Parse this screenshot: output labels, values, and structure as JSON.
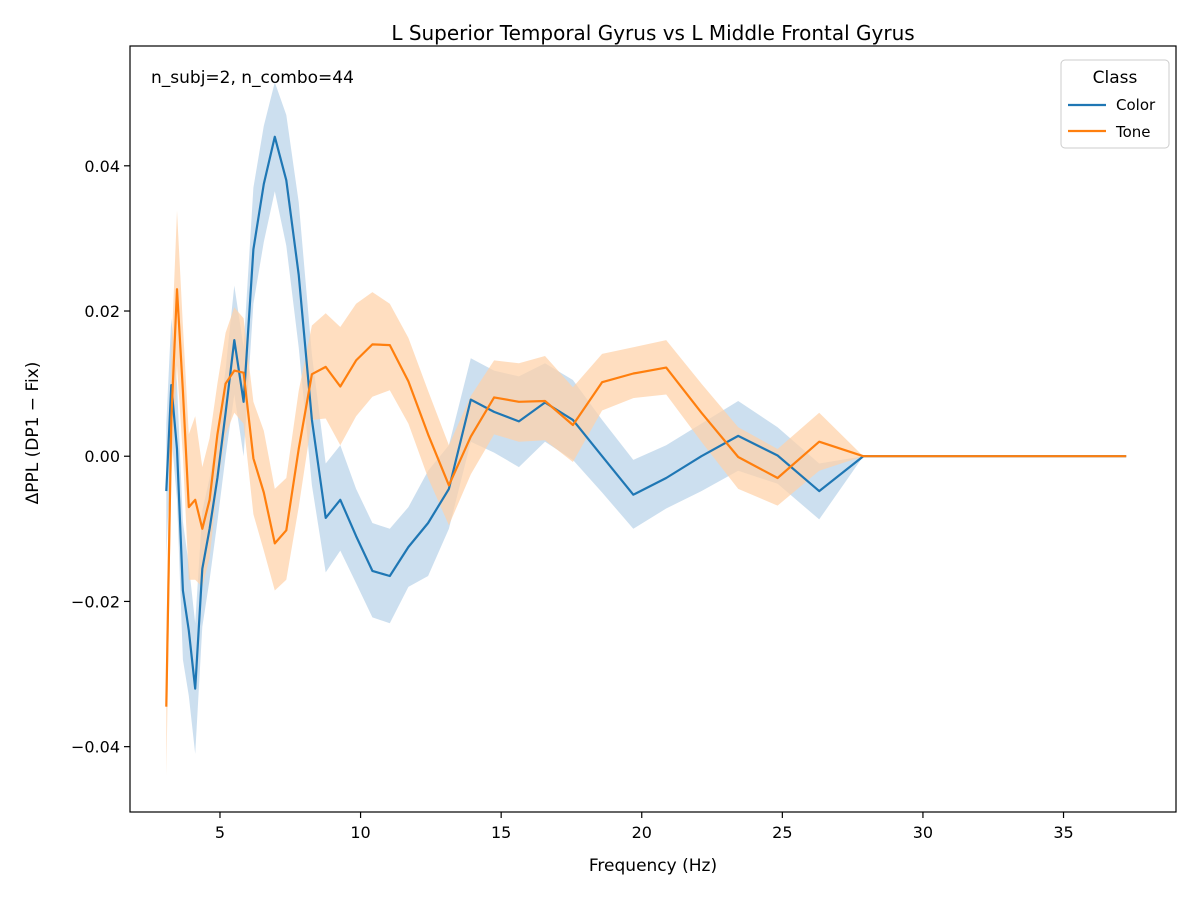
{
  "chart_data": {
    "type": "line",
    "title": "L Superior Temporal Gyrus vs L Middle Frontal Gyrus",
    "xlabel": "Frequency (Hz)",
    "ylabel": "ΔPPL (DP1 − Fix)",
    "annotation": "n_subj=2, n_combo=44",
    "xlim": [
      1.8,
      39.0
    ],
    "ylim": [
      -0.049,
      0.0565
    ],
    "xticks": [
      5,
      10,
      15,
      20,
      25,
      30,
      35
    ],
    "xtick_labels": [
      "5",
      "10",
      "15",
      "20",
      "25",
      "30",
      "35"
    ],
    "yticks": [
      -0.04,
      -0.02,
      0.0,
      0.02,
      0.04
    ],
    "ytick_labels": [
      "−0.04",
      "−0.02",
      "0.00",
      "0.02",
      "0.04"
    ],
    "grid": false,
    "legend": {
      "title": "Class",
      "position": "top-right"
    },
    "x": [
      3.09,
      3.27,
      3.47,
      3.68,
      3.89,
      4.12,
      4.37,
      4.63,
      4.91,
      5.2,
      5.51,
      5.84,
      6.19,
      6.56,
      6.95,
      7.36,
      7.8,
      8.27,
      8.76,
      9.28,
      9.84,
      10.42,
      11.04,
      11.7,
      12.4,
      13.14,
      13.92,
      14.75,
      15.63,
      16.56,
      17.55,
      18.59,
      19.7,
      20.87,
      22.12,
      23.43,
      24.83,
      26.31,
      27.88,
      29.54,
      31.3,
      33.16,
      35.14,
      37.23
    ],
    "series": [
      {
        "name": "Color",
        "color": "#1f77b4",
        "band_color": "#b9d3e9",
        "values": [
          -0.0048,
          0.0098,
          0.001,
          -0.0185,
          -0.024,
          -0.032,
          -0.0155,
          -0.01,
          -0.003,
          0.006,
          0.016,
          0.0075,
          0.0285,
          0.0375,
          0.044,
          0.038,
          0.025,
          0.005,
          -0.0085,
          -0.006,
          -0.011,
          -0.0158,
          -0.0165,
          -0.0125,
          -0.0092,
          -0.0045,
          0.0078,
          0.0061,
          0.0048,
          0.0074,
          0.005,
          0.0,
          -0.0053,
          -0.003,
          0.0,
          0.0028,
          0.0001,
          -0.0048,
          0,
          0,
          0,
          0,
          0,
          0
        ],
        "lower": [
          -0.014,
          0.003,
          -0.006,
          -0.028,
          -0.033,
          -0.041,
          -0.0235,
          -0.017,
          -0.009,
          0.0,
          0.0085,
          0.0,
          0.021,
          0.0295,
          0.0365,
          0.029,
          0.015,
          -0.004,
          -0.016,
          -0.013,
          -0.0175,
          -0.0222,
          -0.023,
          -0.018,
          -0.0165,
          -0.01,
          0.002,
          0.0005,
          -0.0015,
          0.002,
          -0.0005,
          -0.005,
          -0.01,
          -0.0072,
          -0.0048,
          -0.002,
          -0.0038,
          -0.0087,
          0,
          0,
          0,
          0,
          0,
          0
        ],
        "upper": [
          0.0045,
          0.019,
          0.01,
          -0.009,
          -0.015,
          -0.023,
          -0.0075,
          -0.003,
          0.003,
          0.012,
          0.0235,
          0.015,
          0.037,
          0.0455,
          0.0515,
          0.047,
          0.035,
          0.014,
          -0.001,
          0.0015,
          -0.0045,
          -0.0092,
          -0.01,
          -0.007,
          -0.002,
          0.0015,
          0.0135,
          0.0118,
          0.011,
          0.0128,
          0.0105,
          0.005,
          -0.0005,
          0.0015,
          0.0045,
          0.0076,
          0.004,
          -0.001,
          0,
          0,
          0,
          0,
          0,
          0
        ]
      },
      {
        "name": "Tone",
        "color": "#ff7f0e",
        "band_color": "#ffd1a8",
        "values": [
          -0.0345,
          0.005,
          0.023,
          0.009,
          -0.007,
          -0.006,
          -0.01,
          -0.006,
          0.003,
          0.01,
          0.0118,
          0.0115,
          -0.0003,
          -0.005,
          -0.012,
          -0.0102,
          0.001,
          0.0113,
          0.0123,
          0.0096,
          0.0132,
          0.0154,
          0.0153,
          0.0103,
          0.003,
          -0.004,
          0.0027,
          0.0081,
          0.0075,
          0.0076,
          0.0043,
          0.0102,
          0.0114,
          0.0122,
          0.006,
          -0.0001,
          -0.003,
          0.002,
          0,
          0,
          0,
          0,
          0,
          0
        ],
        "lower": [
          -0.044,
          -0.003,
          0.0125,
          0.0,
          -0.017,
          -0.017,
          -0.018,
          -0.014,
          -0.004,
          0.003,
          0.006,
          0.0045,
          -0.008,
          -0.013,
          -0.0185,
          -0.017,
          -0.007,
          0.005,
          0.0052,
          0.0015,
          0.0055,
          0.0082,
          0.0091,
          0.0045,
          -0.003,
          -0.0095,
          -0.0025,
          0.003,
          0.002,
          0.0022,
          -0.0008,
          0.0063,
          0.008,
          0.0085,
          0.002,
          -0.0045,
          -0.0068,
          -0.002,
          0,
          0,
          0,
          0,
          0,
          0
        ],
        "upper": [
          -0.025,
          0.014,
          0.0338,
          0.018,
          0.003,
          0.0055,
          -0.0015,
          0.0025,
          0.01,
          0.017,
          0.0205,
          0.019,
          0.0075,
          0.0035,
          -0.0045,
          -0.003,
          0.009,
          0.018,
          0.0197,
          0.0178,
          0.021,
          0.0226,
          0.021,
          0.0163,
          0.009,
          0.0015,
          0.0083,
          0.0132,
          0.0128,
          0.0138,
          0.0095,
          0.0141,
          0.015,
          0.016,
          0.01,
          0.004,
          0.001,
          0.006,
          0,
          0,
          0,
          0,
          0,
          0
        ]
      }
    ]
  }
}
